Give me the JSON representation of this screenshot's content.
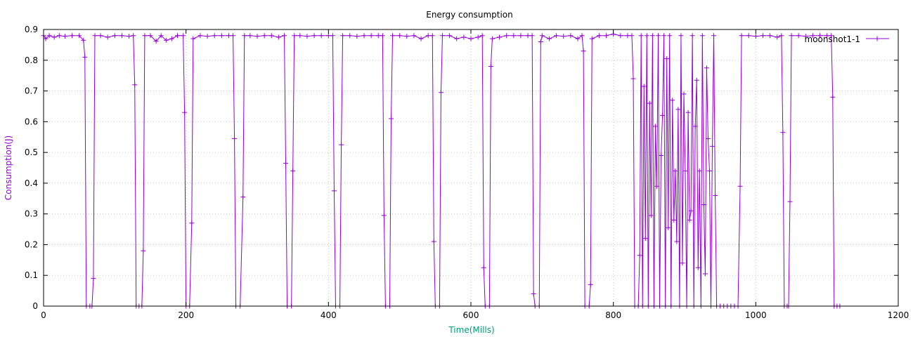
{
  "chart_data": {
    "type": "line",
    "title": "Energy consumption",
    "xlabel": "Time(Mills)",
    "ylabel": "Consumption(J)",
    "xlim": [
      0,
      1200
    ],
    "ylim": [
      0,
      0.9
    ],
    "x_ticks": [
      0,
      200,
      400,
      600,
      800,
      1000,
      1200
    ],
    "y_ticks": [
      0,
      0.1,
      0.2,
      0.3,
      0.4,
      0.5,
      0.6,
      0.7,
      0.8,
      0.9
    ],
    "x_tick_labels": [
      "0",
      "200",
      "400",
      "600",
      "800",
      "1000",
      "1200"
    ],
    "y_tick_labels": [
      "0",
      "0.1",
      "0.2",
      "0.3",
      "0.4",
      "0.5",
      "0.6",
      "0.7",
      "0.8",
      "0.9"
    ],
    "grid": true,
    "legend_position": "top-right",
    "colors": {
      "series": "#9400d3",
      "xlabel": "#009e73",
      "ylabel": "#9400d3"
    },
    "series": [
      {
        "name": "moonshot1-1",
        "marker": "plus",
        "points": [
          [
            0,
            0.88
          ],
          [
            3,
            0.87
          ],
          [
            8,
            0.88
          ],
          [
            15,
            0.875
          ],
          [
            22,
            0.88
          ],
          [
            30,
            0.878
          ],
          [
            40,
            0.88
          ],
          [
            50,
            0.88
          ],
          [
            56,
            0.865
          ],
          [
            58,
            0.81
          ],
          [
            60,
            0.0
          ],
          [
            65,
            0.0
          ],
          [
            68,
            0.0
          ],
          [
            70,
            0.09
          ],
          [
            72,
            0.88
          ],
          [
            80,
            0.88
          ],
          [
            90,
            0.875
          ],
          [
            100,
            0.88
          ],
          [
            110,
            0.88
          ],
          [
            120,
            0.878
          ],
          [
            126,
            0.88
          ],
          [
            128,
            0.72
          ],
          [
            130,
            0.0
          ],
          [
            134,
            0.0
          ],
          [
            138,
            0.0
          ],
          [
            140,
            0.18
          ],
          [
            142,
            0.88
          ],
          [
            150,
            0.88
          ],
          [
            158,
            0.862
          ],
          [
            165,
            0.88
          ],
          [
            172,
            0.865
          ],
          [
            180,
            0.87
          ],
          [
            188,
            0.88
          ],
          [
            196,
            0.88
          ],
          [
            198,
            0.63
          ],
          [
            200,
            0.0
          ],
          [
            205,
            0.0
          ],
          [
            208,
            0.27
          ],
          [
            210,
            0.87
          ],
          [
            220,
            0.88
          ],
          [
            230,
            0.878
          ],
          [
            240,
            0.88
          ],
          [
            250,
            0.88
          ],
          [
            260,
            0.88
          ],
          [
            266,
            0.88
          ],
          [
            268,
            0.545
          ],
          [
            270,
            0.0
          ],
          [
            276,
            0.0
          ],
          [
            280,
            0.355
          ],
          [
            282,
            0.88
          ],
          [
            290,
            0.88
          ],
          [
            300,
            0.878
          ],
          [
            310,
            0.88
          ],
          [
            320,
            0.88
          ],
          [
            330,
            0.875
          ],
          [
            338,
            0.88
          ],
          [
            340,
            0.465
          ],
          [
            342,
            0.0
          ],
          [
            348,
            0.0
          ],
          [
            350,
            0.44
          ],
          [
            352,
            0.88
          ],
          [
            360,
            0.88
          ],
          [
            370,
            0.878
          ],
          [
            380,
            0.88
          ],
          [
            390,
            0.88
          ],
          [
            400,
            0.88
          ],
          [
            406,
            0.88
          ],
          [
            408,
            0.375
          ],
          [
            410,
            0.0
          ],
          [
            416,
            0.0
          ],
          [
            418,
            0.525
          ],
          [
            420,
            0.88
          ],
          [
            430,
            0.88
          ],
          [
            440,
            0.878
          ],
          [
            450,
            0.88
          ],
          [
            460,
            0.88
          ],
          [
            470,
            0.88
          ],
          [
            476,
            0.88
          ],
          [
            478,
            0.295
          ],
          [
            480,
            0.0
          ],
          [
            486,
            0.0
          ],
          [
            488,
            0.61
          ],
          [
            490,
            0.88
          ],
          [
            500,
            0.88
          ],
          [
            510,
            0.878
          ],
          [
            520,
            0.88
          ],
          [
            530,
            0.87
          ],
          [
            540,
            0.88
          ],
          [
            546,
            0.88
          ],
          [
            548,
            0.21
          ],
          [
            550,
            0.0
          ],
          [
            556,
            0.0
          ],
          [
            558,
            0.695
          ],
          [
            560,
            0.88
          ],
          [
            570,
            0.88
          ],
          [
            580,
            0.87
          ],
          [
            590,
            0.875
          ],
          [
            600,
            0.87
          ],
          [
            610,
            0.875
          ],
          [
            616,
            0.88
          ],
          [
            618,
            0.125
          ],
          [
            620,
            0.0
          ],
          [
            626,
            0.0
          ],
          [
            628,
            0.78
          ],
          [
            630,
            0.87
          ],
          [
            640,
            0.875
          ],
          [
            650,
            0.88
          ],
          [
            660,
            0.88
          ],
          [
            670,
            0.88
          ],
          [
            680,
            0.88
          ],
          [
            686,
            0.88
          ],
          [
            688,
            0.04
          ],
          [
            690,
            0.0
          ],
          [
            696,
            0.0
          ],
          [
            698,
            0.86
          ],
          [
            700,
            0.88
          ],
          [
            710,
            0.87
          ],
          [
            720,
            0.88
          ],
          [
            730,
            0.878
          ],
          [
            740,
            0.88
          ],
          [
            750,
            0.87
          ],
          [
            756,
            0.88
          ],
          [
            758,
            0.83
          ],
          [
            760,
            0.0
          ],
          [
            766,
            0.0
          ],
          [
            768,
            0.07
          ],
          [
            770,
            0.87
          ],
          [
            780,
            0.88
          ],
          [
            790,
            0.88
          ],
          [
            800,
            0.885
          ],
          [
            810,
            0.88
          ],
          [
            820,
            0.88
          ],
          [
            826,
            0.88
          ],
          [
            828,
            0.74
          ],
          [
            830,
            0.0
          ],
          [
            835,
            0.0
          ],
          [
            837,
            0.165
          ],
          [
            839,
            0.88
          ],
          [
            841,
            0.0
          ],
          [
            843,
            0.715
          ],
          [
            845,
            0.22
          ],
          [
            847,
            0.88
          ],
          [
            849,
            0.0
          ],
          [
            851,
            0.66
          ],
          [
            853,
            0.295
          ],
          [
            855,
            0.88
          ],
          [
            857,
            0.0
          ],
          [
            859,
            0.585
          ],
          [
            861,
            0.39
          ],
          [
            863,
            0.88
          ],
          [
            865,
            0.0
          ],
          [
            867,
            0.49
          ],
          [
            869,
            0.62
          ],
          [
            871,
            0.88
          ],
          [
            873,
            0.0
          ],
          [
            875,
            0.805
          ],
          [
            877,
            0.255
          ],
          [
            879,
            0.88
          ],
          [
            881,
            0.0
          ],
          [
            883,
            0.67
          ],
          [
            885,
            0.28
          ],
          [
            887,
            0.44
          ],
          [
            889,
            0.21
          ],
          [
            891,
            0.64
          ],
          [
            893,
            0.0
          ],
          [
            895,
            0.88
          ],
          [
            897,
            0.14
          ],
          [
            899,
            0.69
          ],
          [
            901,
            0.44
          ],
          [
            903,
            0.0
          ],
          [
            905,
            0.63
          ],
          [
            907,
            0.28
          ],
          [
            909,
            0.31
          ],
          [
            911,
            0.88
          ],
          [
            913,
            0.0
          ],
          [
            915,
            0.585
          ],
          [
            917,
            0.735
          ],
          [
            919,
            0.125
          ],
          [
            921,
            0.44
          ],
          [
            923,
            0.0
          ],
          [
            925,
            0.88
          ],
          [
            927,
            0.33
          ],
          [
            929,
            0.105
          ],
          [
            931,
            0.775
          ],
          [
            933,
            0.545
          ],
          [
            935,
            0.44
          ],
          [
            937,
            0.0
          ],
          [
            939,
            0.52
          ],
          [
            941,
            0.88
          ],
          [
            943,
            0.36
          ],
          [
            945,
            0.0
          ],
          [
            950,
            0.0
          ],
          [
            955,
            0.0
          ],
          [
            960,
            0.0
          ],
          [
            965,
            0.0
          ],
          [
            970,
            0.0
          ],
          [
            975,
            0.0
          ],
          [
            978,
            0.39
          ],
          [
            980,
            0.88
          ],
          [
            990,
            0.88
          ],
          [
            1000,
            0.878
          ],
          [
            1010,
            0.88
          ],
          [
            1020,
            0.88
          ],
          [
            1030,
            0.875
          ],
          [
            1036,
            0.88
          ],
          [
            1038,
            0.565
          ],
          [
            1040,
            0.0
          ],
          [
            1044,
            0.0
          ],
          [
            1046,
            0.0
          ],
          [
            1048,
            0.34
          ],
          [
            1050,
            0.88
          ],
          [
            1060,
            0.88
          ],
          [
            1070,
            0.878
          ],
          [
            1080,
            0.88
          ],
          [
            1090,
            0.88
          ],
          [
            1100,
            0.88
          ],
          [
            1106,
            0.88
          ],
          [
            1108,
            0.68
          ],
          [
            1110,
            0.0
          ],
          [
            1114,
            0.0
          ],
          [
            1118,
            0.0
          ]
        ]
      }
    ]
  }
}
